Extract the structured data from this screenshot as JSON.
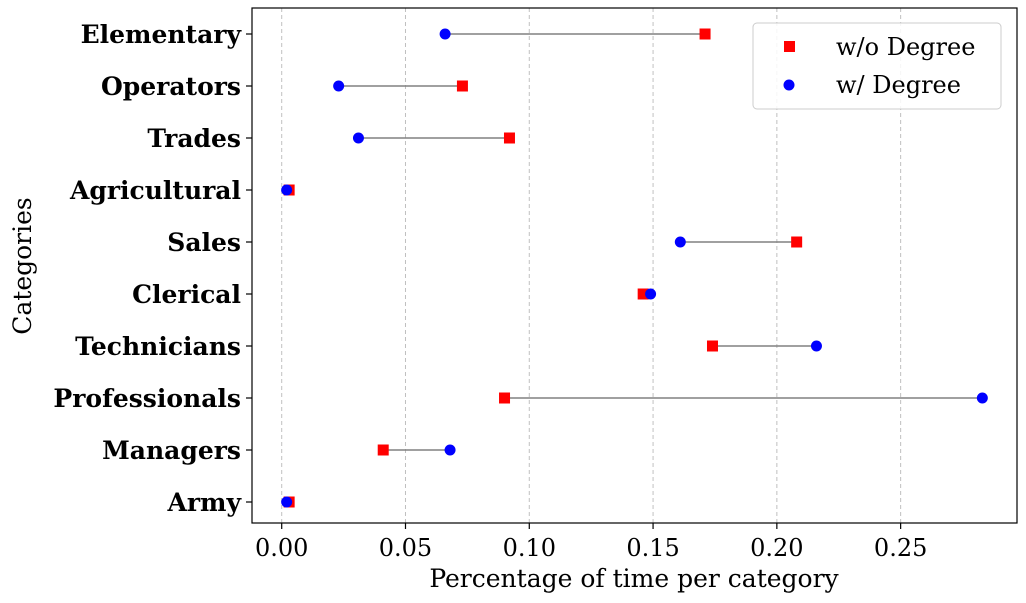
{
  "chart_data": {
    "type": "dumbbell",
    "title": "",
    "xlabel": "Percentage of time per category",
    "ylabel": "Categories",
    "xlim": [
      -0.012,
      0.297
    ],
    "xticks": [
      0.0,
      0.05,
      0.1,
      0.15,
      0.2,
      0.25
    ],
    "xtick_labels": [
      "0.00",
      "0.05",
      "0.10",
      "0.15",
      "0.20",
      "0.25"
    ],
    "grid": "x-dashed",
    "legend_position": "upper-right",
    "categories": [
      "Army",
      "Managers",
      "Professionals",
      "Technicians",
      "Clerical",
      "Sales",
      "Agricultural",
      "Trades",
      "Operators",
      "Elementary"
    ],
    "series": [
      {
        "name": "w/o Degree",
        "marker": "square",
        "color": "#ff0000",
        "values": [
          0.003,
          0.041,
          0.09,
          0.174,
          0.146,
          0.208,
          0.003,
          0.092,
          0.073,
          0.171
        ]
      },
      {
        "name": "w/ Degree",
        "marker": "circle",
        "color": "#0000ff",
        "values": [
          0.002,
          0.068,
          0.283,
          0.216,
          0.149,
          0.161,
          0.002,
          0.031,
          0.023,
          0.066
        ]
      }
    ],
    "connector_color": "#808080"
  }
}
